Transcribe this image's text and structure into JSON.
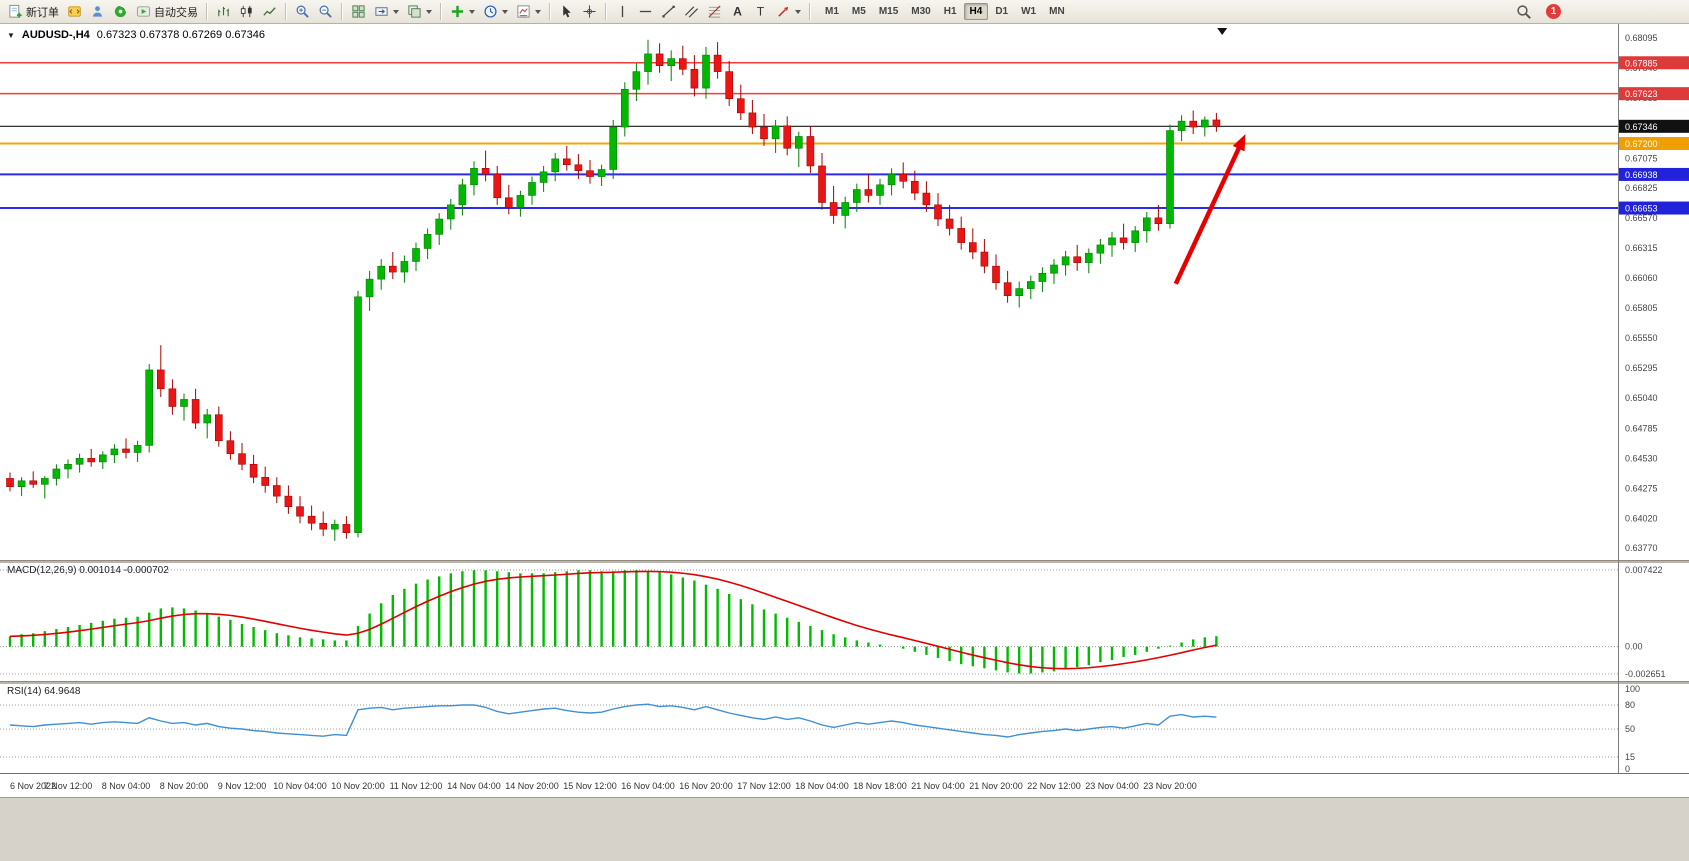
{
  "toolbar": {
    "new_order_label": "新订单",
    "autotrading_label": "自动交易",
    "timeframes": [
      "M1",
      "M5",
      "M15",
      "M30",
      "H1",
      "H4",
      "D1",
      "W1",
      "MN"
    ],
    "active_timeframe": "H4",
    "notification_count": "1"
  },
  "icons": {
    "text_tool": "A",
    "label_tool": "T",
    "collapse_glyph": "▼"
  },
  "chart_header": {
    "symbol_title": "AUDUSD-,H4",
    "ohlc_text": "0.67323 0.67378 0.67269 0.67346"
  },
  "chart_data": [
    {
      "type": "candlestick",
      "symbol": "AUDUSD-",
      "timeframe": "H4",
      "ohlc_display": {
        "open": "0.67323",
        "high": "0.67378",
        "low": "0.67269",
        "close": "0.67346"
      },
      "ylim": [
        0.6377,
        0.68095
      ],
      "up_color": "#00b800",
      "down_color": "#ea1616",
      "y_axis_labels": [
        "0.68095",
        "0.67840",
        "0.67585",
        "0.67330",
        "0.67075",
        "0.66825",
        "0.66570",
        "0.66315",
        "0.66060",
        "0.65805",
        "0.65550",
        "0.65295",
        "0.65040",
        "0.64785",
        "0.64530",
        "0.64275",
        "0.64020",
        "0.63770"
      ],
      "levels": [
        {
          "price": 0.67885,
          "label": "0.67885",
          "color": "#f43b3b",
          "badge": "#df3a3a",
          "lw": 1.5
        },
        {
          "price": 0.67623,
          "label": "0.67623",
          "color": "#f43b3b",
          "badge": "#df3a3a",
          "lw": 1.5
        },
        {
          "price": 0.67346,
          "label": "0.67346",
          "color": "#1a1a1a",
          "badge": "#111111",
          "lw": 1.2
        },
        {
          "price": 0.672,
          "label": "0.67200",
          "color": "#f7a600",
          "badge": "#ef9f00",
          "lw": 2
        },
        {
          "price": 0.66938,
          "label": "0.66938",
          "color": "#2b2bf0",
          "badge": "#2222dd",
          "lw": 2
        },
        {
          "price": 0.66653,
          "label": "0.66653",
          "color": "#2b2bf0",
          "badge": "#2222dd",
          "lw": 2
        }
      ],
      "arrow": {
        "from_index": 100.5,
        "from_price": 0.6601,
        "to_index": 106.5,
        "to_price": 0.6728,
        "color": "#e80000"
      },
      "shift_marker_index": 104.5,
      "label_step": 5,
      "time_labels": [
        "6 Nov 2022",
        "7 Nov 12:00",
        "8 Nov 04:00",
        "8 Nov 20:00",
        "9 Nov 12:00",
        "10 Nov 04:00",
        "10 Nov 20:00",
        "11 Nov 12:00",
        "14 Nov 04:00",
        "14 Nov 20:00",
        "15 Nov 12:00",
        "16 Nov 04:00",
        "16 Nov 20:00",
        "17 Nov 12:00",
        "18 Nov 04:00",
        "18 Nov 18:00",
        "21 Nov 04:00",
        "21 Nov 20:00",
        "22 Nov 12:00",
        "23 Nov 04:00",
        "23 Nov 20:00"
      ],
      "candles": [
        [
          0.6436,
          0.6441,
          0.6425,
          0.6429
        ],
        [
          0.6429,
          0.6437,
          0.6421,
          0.6434
        ],
        [
          0.6434,
          0.6442,
          0.6428,
          0.6431
        ],
        [
          0.6431,
          0.6438,
          0.6419,
          0.6436
        ],
        [
          0.6436,
          0.6448,
          0.643,
          0.6444
        ],
        [
          0.6444,
          0.6452,
          0.6436,
          0.6448
        ],
        [
          0.6448,
          0.6457,
          0.6441,
          0.6453
        ],
        [
          0.6453,
          0.6461,
          0.6446,
          0.645
        ],
        [
          0.645,
          0.6459,
          0.6444,
          0.6456
        ],
        [
          0.6456,
          0.6465,
          0.6449,
          0.6461
        ],
        [
          0.6461,
          0.647,
          0.6453,
          0.6458
        ],
        [
          0.6458,
          0.6468,
          0.645,
          0.6464
        ],
        [
          0.6464,
          0.6533,
          0.6458,
          0.6528
        ],
        [
          0.6528,
          0.6549,
          0.6505,
          0.6512
        ],
        [
          0.6512,
          0.652,
          0.649,
          0.6497
        ],
        [
          0.6497,
          0.6508,
          0.6485,
          0.6503
        ],
        [
          0.6503,
          0.6512,
          0.6478,
          0.6483
        ],
        [
          0.6483,
          0.6495,
          0.647,
          0.649
        ],
        [
          0.649,
          0.6497,
          0.6463,
          0.6468
        ],
        [
          0.6468,
          0.6476,
          0.6452,
          0.6457
        ],
        [
          0.6457,
          0.6466,
          0.6443,
          0.6448
        ],
        [
          0.6448,
          0.6456,
          0.6432,
          0.6437
        ],
        [
          0.6437,
          0.6446,
          0.6424,
          0.643
        ],
        [
          0.643,
          0.6437,
          0.6415,
          0.6421
        ],
        [
          0.6421,
          0.643,
          0.6406,
          0.6412
        ],
        [
          0.6412,
          0.6421,
          0.6398,
          0.6404
        ],
        [
          0.6404,
          0.6413,
          0.6392,
          0.6398
        ],
        [
          0.6398,
          0.6408,
          0.6387,
          0.6393
        ],
        [
          0.6393,
          0.6401,
          0.6383,
          0.6397
        ],
        [
          0.6397,
          0.6404,
          0.6385,
          0.639
        ],
        [
          0.639,
          0.6595,
          0.6386,
          0.659
        ],
        [
          0.659,
          0.6612,
          0.6578,
          0.6605
        ],
        [
          0.6605,
          0.6622,
          0.6596,
          0.6616
        ],
        [
          0.6616,
          0.6628,
          0.6605,
          0.6611
        ],
        [
          0.6611,
          0.6625,
          0.6602,
          0.662
        ],
        [
          0.662,
          0.6636,
          0.6612,
          0.6631
        ],
        [
          0.6631,
          0.6648,
          0.6622,
          0.6643
        ],
        [
          0.6643,
          0.6661,
          0.6634,
          0.6656
        ],
        [
          0.6656,
          0.6673,
          0.6647,
          0.6668
        ],
        [
          0.6668,
          0.669,
          0.6659,
          0.6685
        ],
        [
          0.6685,
          0.6705,
          0.6676,
          0.6699
        ],
        [
          0.6699,
          0.6714,
          0.6688,
          0.6694
        ],
        [
          0.6694,
          0.6701,
          0.6668,
          0.6674
        ],
        [
          0.6674,
          0.6685,
          0.666,
          0.6666
        ],
        [
          0.6666,
          0.668,
          0.6658,
          0.6676
        ],
        [
          0.6676,
          0.6692,
          0.6668,
          0.6687
        ],
        [
          0.6687,
          0.6701,
          0.6679,
          0.6696
        ],
        [
          0.6696,
          0.6712,
          0.6688,
          0.6707
        ],
        [
          0.6707,
          0.6718,
          0.6697,
          0.6702
        ],
        [
          0.6702,
          0.6711,
          0.669,
          0.6697
        ],
        [
          0.6697,
          0.6706,
          0.6686,
          0.6692
        ],
        [
          0.6692,
          0.6702,
          0.6684,
          0.6698
        ],
        [
          0.6698,
          0.674,
          0.669,
          0.6734
        ],
        [
          0.6734,
          0.6772,
          0.6726,
          0.6766
        ],
        [
          0.6766,
          0.6788,
          0.6756,
          0.6781
        ],
        [
          0.6781,
          0.6808,
          0.677,
          0.6796
        ],
        [
          0.6796,
          0.6805,
          0.678,
          0.6786
        ],
        [
          0.6786,
          0.6799,
          0.6773,
          0.6792
        ],
        [
          0.6792,
          0.6803,
          0.6778,
          0.6783
        ],
        [
          0.6783,
          0.6795,
          0.676,
          0.6767
        ],
        [
          0.6767,
          0.6802,
          0.6758,
          0.6795
        ],
        [
          0.6795,
          0.6806,
          0.6775,
          0.6781
        ],
        [
          0.6781,
          0.679,
          0.6752,
          0.6758
        ],
        [
          0.6758,
          0.677,
          0.674,
          0.6746
        ],
        [
          0.6746,
          0.6757,
          0.6728,
          0.6734
        ],
        [
          0.6734,
          0.6745,
          0.6718,
          0.6724
        ],
        [
          0.6724,
          0.674,
          0.6712,
          0.6735
        ],
        [
          0.6735,
          0.6743,
          0.671,
          0.6716
        ],
        [
          0.6716,
          0.673,
          0.67,
          0.6726
        ],
        [
          0.6726,
          0.6735,
          0.6695,
          0.6701
        ],
        [
          0.6701,
          0.6712,
          0.6664,
          0.667
        ],
        [
          0.667,
          0.6684,
          0.6652,
          0.6659
        ],
        [
          0.6659,
          0.6675,
          0.6648,
          0.667
        ],
        [
          0.667,
          0.6686,
          0.6662,
          0.6681
        ],
        [
          0.6681,
          0.6694,
          0.667,
          0.6676
        ],
        [
          0.6676,
          0.669,
          0.6668,
          0.6685
        ],
        [
          0.6685,
          0.6699,
          0.6676,
          0.6694
        ],
        [
          0.6694,
          0.6704,
          0.6682,
          0.6688
        ],
        [
          0.6688,
          0.6697,
          0.6672,
          0.6678
        ],
        [
          0.6678,
          0.6688,
          0.6662,
          0.6668
        ],
        [
          0.6668,
          0.6678,
          0.665,
          0.6656
        ],
        [
          0.6656,
          0.6668,
          0.6642,
          0.6648
        ],
        [
          0.6648,
          0.6658,
          0.663,
          0.6636
        ],
        [
          0.6636,
          0.6648,
          0.6622,
          0.6628
        ],
        [
          0.6628,
          0.6639,
          0.661,
          0.6616
        ],
        [
          0.6616,
          0.6626,
          0.6596,
          0.6602
        ],
        [
          0.6602,
          0.6612,
          0.6585,
          0.6591
        ],
        [
          0.6591,
          0.6603,
          0.6581,
          0.6597
        ],
        [
          0.6597,
          0.6608,
          0.6588,
          0.6603
        ],
        [
          0.6603,
          0.6615,
          0.6594,
          0.661
        ],
        [
          0.661,
          0.6622,
          0.6601,
          0.6617
        ],
        [
          0.6617,
          0.6629,
          0.6608,
          0.6624
        ],
        [
          0.6624,
          0.6634,
          0.6612,
          0.6619
        ],
        [
          0.6619,
          0.6631,
          0.661,
          0.6627
        ],
        [
          0.6627,
          0.6639,
          0.6618,
          0.6634
        ],
        [
          0.6634,
          0.6645,
          0.6624,
          0.664
        ],
        [
          0.664,
          0.6652,
          0.663,
          0.6636
        ],
        [
          0.6636,
          0.665,
          0.6628,
          0.6646
        ],
        [
          0.6646,
          0.6662,
          0.6636,
          0.6657
        ],
        [
          0.6657,
          0.6668,
          0.6646,
          0.6652
        ],
        [
          0.6652,
          0.6736,
          0.6648,
          0.6731
        ],
        [
          0.6731,
          0.6744,
          0.6722,
          0.6739
        ],
        [
          0.6739,
          0.6748,
          0.6728,
          0.6734
        ],
        [
          0.6734,
          0.6743,
          0.6726,
          0.674
        ],
        [
          0.674,
          0.6746,
          0.673,
          0.67346
        ]
      ]
    },
    {
      "type": "bar",
      "name": "MACD",
      "label": "MACD(12,26,9) 0.001014 -0.000702",
      "main_value": "0.001014",
      "signal_value": "-0.000702",
      "ylim": [
        -0.002651,
        0.007422
      ],
      "axis_labels": [
        {
          "text": "0.007422",
          "value": 0.007422
        },
        {
          "text": "0.00",
          "value": 0
        },
        {
          "text": "-0.002651",
          "value": -0.002651
        }
      ],
      "histogram_color": "#00bb00",
      "signal_color": "#e00000",
      "values": [
        0.001,
        0.0012,
        0.0013,
        0.0015,
        0.0017,
        0.0019,
        0.0021,
        0.0023,
        0.0025,
        0.0027,
        0.0028,
        0.0029,
        0.0033,
        0.0037,
        0.0038,
        0.0037,
        0.0035,
        0.0032,
        0.0029,
        0.0026,
        0.0022,
        0.0019,
        0.0016,
        0.0013,
        0.0011,
        0.0009,
        0.0008,
        0.0007,
        0.0006,
        0.0006,
        0.002,
        0.0032,
        0.0042,
        0.005,
        0.0056,
        0.0061,
        0.0065,
        0.0068,
        0.0071,
        0.0073,
        0.0074,
        0.0074,
        0.0073,
        0.0072,
        0.0071,
        0.0071,
        0.0071,
        0.0072,
        0.0073,
        0.0074,
        0.0074,
        0.0073,
        0.0073,
        0.0074,
        0.0074,
        0.0073,
        0.0072,
        0.007,
        0.0067,
        0.0064,
        0.006,
        0.0056,
        0.0051,
        0.0046,
        0.0041,
        0.0036,
        0.0032,
        0.0028,
        0.0024,
        0.002,
        0.0016,
        0.0012,
        0.0009,
        0.0006,
        0.0004,
        0.0002,
        0.0,
        -0.0002,
        -0.0005,
        -0.0008,
        -0.0011,
        -0.0014,
        -0.0017,
        -0.0019,
        -0.0021,
        -0.0023,
        -0.0025,
        -0.0026,
        -0.0026,
        -0.0025,
        -0.0024,
        -0.0022,
        -0.002,
        -0.0018,
        -0.0015,
        -0.0013,
        -0.001,
        -0.0008,
        -0.0005,
        -0.0002,
        0.0001,
        0.0004,
        0.0007,
        0.0009,
        0.001014
      ]
    },
    {
      "type": "line",
      "name": "RSI",
      "label": "RSI(14) 64.9648",
      "current": 64.9648,
      "ylim": [
        0,
        100
      ],
      "axis_labels": [
        {
          "text": "100",
          "value": 100
        },
        {
          "text": "80",
          "value": 80
        },
        {
          "text": "50",
          "value": 50
        },
        {
          "text": "15",
          "value": 15
        },
        {
          "text": "0",
          "value": 0
        }
      ],
      "level_lines": [
        80,
        50,
        15
      ],
      "line_color": "#3f8fd4",
      "values": [
        55,
        54,
        53,
        55,
        56,
        57,
        58,
        56,
        58,
        59,
        58,
        57,
        64,
        60,
        57,
        58,
        55,
        57,
        53,
        51,
        50,
        48,
        47,
        45,
        44,
        43,
        42,
        41,
        43,
        42,
        74,
        76,
        77,
        74,
        76,
        77,
        78,
        79,
        79,
        80,
        80,
        77,
        72,
        69,
        71,
        73,
        75,
        76,
        73,
        71,
        70,
        71,
        75,
        78,
        80,
        81,
        78,
        79,
        77,
        74,
        78,
        74,
        70,
        67,
        64,
        62,
        65,
        62,
        64,
        60,
        55,
        52,
        55,
        58,
        56,
        58,
        60,
        58,
        55,
        53,
        51,
        49,
        47,
        45,
        43,
        42,
        40,
        43,
        45,
        47,
        48,
        50,
        48,
        50,
        52,
        53,
        51,
        54,
        57,
        55,
        66,
        68,
        65,
        66,
        64.96
      ]
    }
  ]
}
